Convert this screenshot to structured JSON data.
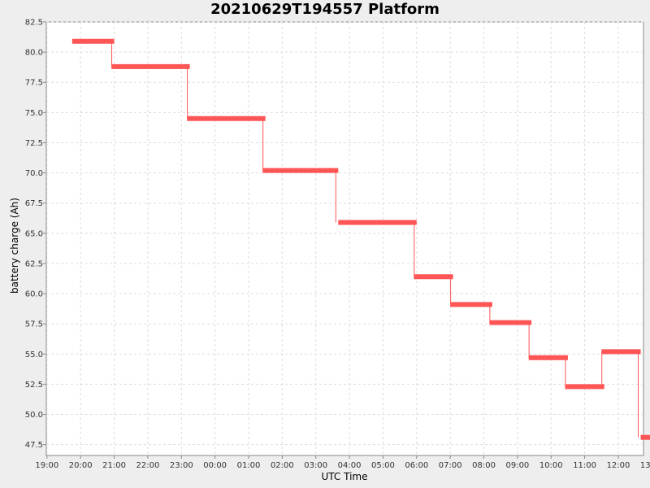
{
  "chart_data": {
    "type": "line",
    "title": "20210629T194557 Platform",
    "xlabel": "UTC Time",
    "ylabel": "battery charge (Ah)",
    "x_tick_labels": [
      "19:00",
      "20:00",
      "21:00",
      "22:00",
      "23:00",
      "00:00",
      "01:00",
      "02:00",
      "03:00",
      "04:00",
      "05:00",
      "06:00",
      "07:00",
      "08:00",
      "09:00",
      "10:00",
      "11:00",
      "12:00",
      "13:00"
    ],
    "y_tick_labels": [
      "47.5",
      "50.0",
      "52.5",
      "55.0",
      "57.5",
      "60.0",
      "62.5",
      "65.0",
      "67.5",
      "70.0",
      "72.5",
      "75.0",
      "77.5",
      "80.0",
      "82.5"
    ],
    "xlim_hours": [
      18.98,
      36.75
    ],
    "ylim": [
      46.6,
      82.5
    ],
    "grid": true,
    "series": [
      {
        "color": "#ff5555",
        "segments": [
          {
            "start": "19:45",
            "end": "21:00",
            "value": 80.9
          },
          {
            "start": "20:55",
            "end": "23:15",
            "value": 78.8
          },
          {
            "start": "23:10",
            "end": "01:30",
            "value": 74.5
          },
          {
            "start": "01:25",
            "end": "03:40",
            "value": 70.2
          },
          {
            "start": "03:40",
            "end": "06:00",
            "value": 65.9
          },
          {
            "start": "05:55",
            "end": "07:05",
            "value": 61.4
          },
          {
            "start": "07:00",
            "end": "08:15",
            "value": 59.1
          },
          {
            "start": "08:10",
            "end": "09:25",
            "value": 57.6
          },
          {
            "start": "09:20",
            "end": "10:30",
            "value": 54.7
          },
          {
            "start": "10:25",
            "end": "11:35",
            "value": 52.3
          },
          {
            "start": "11:30",
            "end": "12:40",
            "value": 55.2
          },
          {
            "start": "12:40",
            "end": "13:00",
            "value": 48.1
          }
        ]
      }
    ]
  }
}
